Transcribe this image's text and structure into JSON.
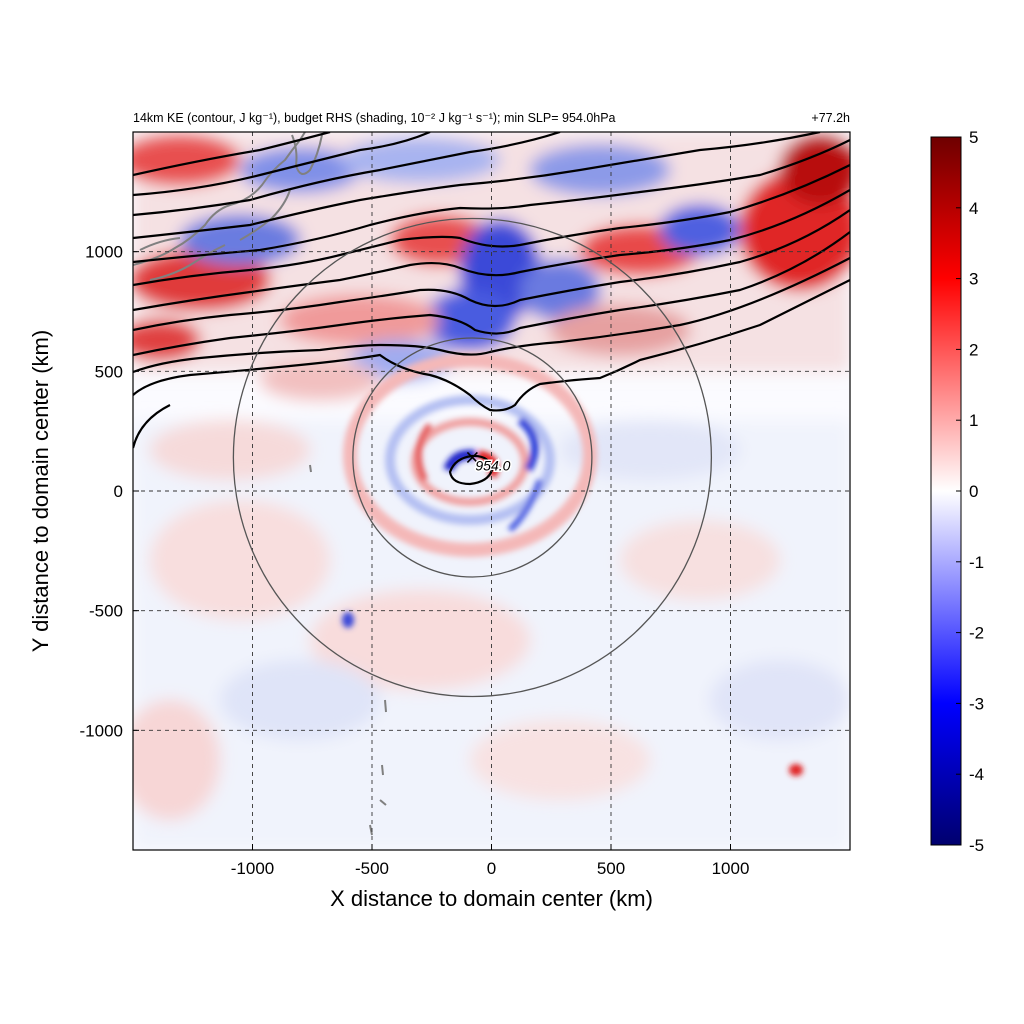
{
  "chart_data": {
    "type": "heatmap",
    "title": {
      "main": "14km KE (contour, J kg⁻¹), budget RHS (shading, 10⁻² J kg⁻¹ s⁻¹); min SLP= 954.0hPa",
      "time": "+77.2h"
    },
    "xlabel": "X distance to domain center (km)",
    "ylabel": "Y distance to domain center (km)",
    "xlim": [
      -1500,
      1500
    ],
    "ylim": [
      -1500,
      1500
    ],
    "xticks": [
      -1000,
      -500,
      0,
      500,
      1000
    ],
    "yticks": [
      -1000,
      -500,
      0,
      500,
      1000
    ],
    "grid": "dashed at 500 km spacing",
    "colorbar": {
      "min": -5,
      "max": 5,
      "ticks": [
        5,
        4,
        3,
        2,
        1,
        0,
        -1,
        -2,
        -3,
        -4,
        -5
      ],
      "colormap": "blue-white-red",
      "colors": [
        "#00006e",
        "#0000ff",
        "#ffffff",
        "#ff0000",
        "#6e0000"
      ]
    },
    "storm_center": {
      "x": -80,
      "y": 140,
      "label": "954.0",
      "marker": "x-mark"
    },
    "range_circles_km": [
      500,
      1000
    ],
    "features": {
      "ke_contours": "zonal jet band of black contours north of y≈500 km",
      "coastline": "grey land outlines in the upper-left corner"
    }
  }
}
